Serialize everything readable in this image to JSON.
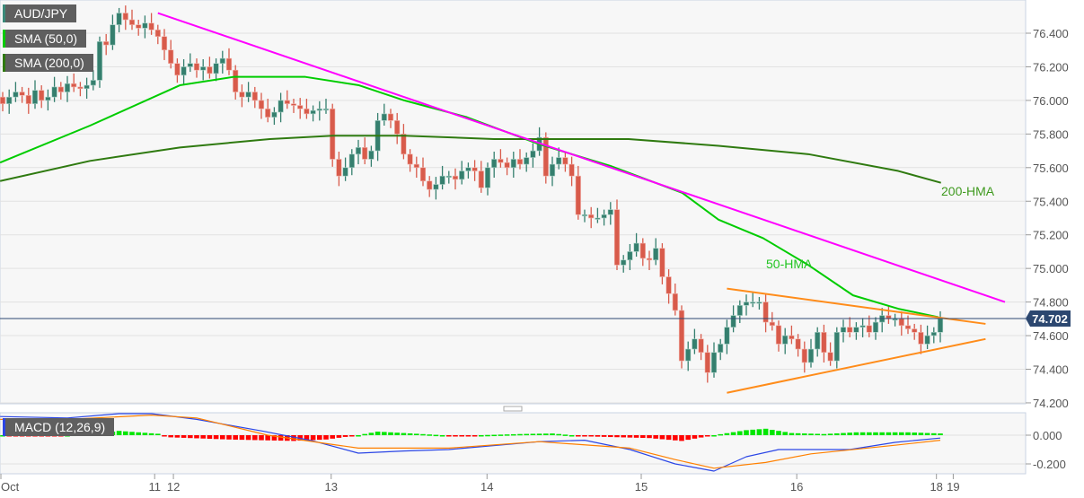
{
  "chart_data": {
    "type": "candlestick",
    "symbol": "AUD/JPY",
    "indicators": [
      "SMA (50,0)",
      "SMA (200,0)"
    ],
    "macd_label": "MACD (12,26,9)",
    "last_price": "74.702",
    "ylim": [
      74.2,
      76.55
    ],
    "y_ticks": [
      "76.400",
      "76.200",
      "76.000",
      "75.800",
      "75.600",
      "75.400",
      "75.200",
      "75.000",
      "74.800",
      "74.600",
      "74.400",
      "74.200"
    ],
    "macd_ylim": [
      -0.27,
      0.17
    ],
    "macd_ticks": [
      "0.000",
      "-0.200"
    ],
    "x_ticks": [
      {
        "label": "Oct",
        "bar": -0.4
      },
      {
        "label": "11",
        "bar": 23.5
      },
      {
        "label": "12",
        "bar": 26.4
      },
      {
        "label": "13",
        "bar": 50.8
      },
      {
        "label": "14",
        "bar": 74.9
      },
      {
        "label": "15",
        "bar": 98.75
      },
      {
        "label": "16",
        "bar": 122.8
      },
      {
        "label": "18",
        "bar": 144.4
      },
      {
        "label": "19",
        "bar": 147
      }
    ],
    "first_open": 76.02,
    "closes": [
      75.98,
      76.02,
      76.05,
      76.03,
      75.98,
      76.06,
      76.0,
      76.02,
      76.08,
      76.05,
      76.1,
      76.08,
      76.07,
      76.09,
      76.12,
      76.35,
      76.33,
      76.45,
      76.52,
      76.48,
      76.45,
      76.43,
      76.46,
      76.42,
      76.38,
      76.3,
      76.22,
      76.15,
      76.2,
      76.22,
      76.18,
      76.2,
      76.16,
      76.22,
      76.25,
      76.18,
      76.05,
      76.02,
      76.05,
      76.0,
      75.95,
      75.9,
      75.93,
      76.0,
      75.98,
      75.97,
      75.95,
      75.92,
      75.94,
      75.95,
      75.95,
      75.65,
      75.55,
      75.6,
      75.68,
      75.72,
      75.65,
      75.7,
      75.88,
      75.92,
      75.88,
      75.8,
      75.68,
      75.62,
      75.6,
      75.52,
      75.47,
      75.5,
      75.55,
      75.55,
      75.53,
      75.58,
      75.6,
      75.58,
      75.48,
      75.6,
      75.65,
      75.63,
      75.6,
      75.65,
      75.62,
      75.66,
      75.7,
      75.78,
      75.55,
      75.62,
      75.66,
      75.62,
      75.55,
      75.32,
      75.32,
      75.3,
      75.3,
      75.32,
      75.35,
      75.02,
      75.05,
      75.1,
      75.15,
      75.06,
      75.05,
      75.12,
      74.95,
      74.85,
      74.75,
      74.45,
      74.52,
      74.58,
      74.5,
      74.38,
      74.5,
      74.55,
      74.65,
      74.72,
      74.78,
      74.8,
      74.8,
      74.8,
      74.68,
      74.66,
      74.55,
      74.6,
      74.58,
      74.52,
      74.44,
      74.52,
      74.62,
      74.5,
      74.45,
      74.62,
      74.65,
      74.62,
      74.65,
      74.66,
      74.62,
      74.68,
      74.72,
      74.7,
      74.7,
      74.66,
      74.64,
      74.62,
      74.55,
      74.6,
      74.62,
      74.7
    ],
    "hma50": [
      [
        -0.4,
        75.63
      ],
      [
        13.5,
        75.85
      ],
      [
        27.4,
        76.09
      ],
      [
        35.7,
        76.14
      ],
      [
        46.8,
        76.14
      ],
      [
        55.1,
        76.09
      ],
      [
        62.1,
        76.0
      ],
      [
        71.8,
        75.9
      ],
      [
        82.9,
        75.74
      ],
      [
        94,
        75.61
      ],
      [
        105.1,
        75.45
      ],
      [
        110.7,
        75.29
      ],
      [
        117.6,
        75.18
      ],
      [
        124.6,
        75.02
      ],
      [
        131.5,
        74.84
      ],
      [
        138.5,
        74.76
      ],
      [
        144.7,
        74.71
      ]
    ],
    "hma200": [
      [
        -0.4,
        75.52
      ],
      [
        13.5,
        75.64
      ],
      [
        27.4,
        75.72
      ],
      [
        41.3,
        75.77
      ],
      [
        51,
        75.79
      ],
      [
        62.1,
        75.79
      ],
      [
        76,
        75.77
      ],
      [
        89.9,
        75.77
      ],
      [
        96.8,
        75.77
      ],
      [
        110.7,
        75.73
      ],
      [
        124.6,
        75.68
      ],
      [
        138.5,
        75.58
      ],
      [
        145.1,
        75.51
      ]
    ],
    "annotations": [
      {
        "text": "50-HMA",
        "color": "#22c422"
      },
      {
        "text": "200-HMA",
        "color": "#3f9a1f"
      }
    ],
    "trendlines": [
      {
        "color": "#ff00ff",
        "from": [
          24,
          76.52
        ],
        "to": [
          155,
          74.8
        ]
      },
      {
        "color": "#ff8c1a",
        "from": [
          112,
          74.88
        ],
        "to": [
          152,
          74.67
        ]
      },
      {
        "color": "#ff8c1a",
        "from": [
          112,
          74.26
        ],
        "to": [
          152,
          74.58
        ]
      }
    ],
    "macd": [
      [
        -0.4,
        0.13
      ],
      [
        10,
        0.12
      ],
      [
        18,
        0.15
      ],
      [
        23,
        0.15
      ],
      [
        30,
        0.11
      ],
      [
        40,
        0.03
      ],
      [
        48,
        -0.04
      ],
      [
        55,
        -0.125
      ],
      [
        62,
        -0.11
      ],
      [
        69,
        -0.1
      ],
      [
        83,
        -0.045
      ],
      [
        90,
        -0.035
      ],
      [
        97,
        -0.1
      ],
      [
        104,
        -0.2
      ],
      [
        110,
        -0.25
      ],
      [
        115,
        -0.15
      ],
      [
        120,
        -0.1
      ],
      [
        125,
        -0.1
      ],
      [
        131,
        -0.1
      ],
      [
        138,
        -0.05
      ],
      [
        145,
        -0.02
      ]
    ],
    "signal": [
      [
        -0.4,
        0.11
      ],
      [
        10,
        0.11
      ],
      [
        23,
        0.14
      ],
      [
        30,
        0.12
      ],
      [
        41,
        0.0
      ],
      [
        55,
        -0.09
      ],
      [
        69,
        -0.09
      ],
      [
        83,
        -0.045
      ],
      [
        97,
        -0.09
      ],
      [
        104,
        -0.17
      ],
      [
        110,
        -0.23
      ],
      [
        118,
        -0.19
      ],
      [
        125,
        -0.13
      ],
      [
        138,
        -0.07
      ],
      [
        145,
        -0.035
      ]
    ],
    "histogram": [
      [
        0,
        0.0
      ],
      [
        5,
        -0.008
      ],
      [
        10,
        0.0
      ],
      [
        15,
        0.015
      ],
      [
        18,
        0.03
      ],
      [
        24,
        0.01
      ],
      [
        26,
        -0.015
      ],
      [
        35,
        -0.03
      ],
      [
        45,
        -0.04
      ],
      [
        50,
        -0.03
      ],
      [
        55,
        0.0
      ],
      [
        58,
        0.025
      ],
      [
        62,
        0.015
      ],
      [
        66,
        0.005
      ],
      [
        70,
        -0.005
      ],
      [
        80,
        0.008
      ],
      [
        85,
        0.012
      ],
      [
        90,
        -0.008
      ],
      [
        100,
        -0.02
      ],
      [
        105,
        -0.04
      ],
      [
        110,
        0.0
      ],
      [
        115,
        0.035
      ],
      [
        118,
        0.045
      ],
      [
        122,
        0.015
      ],
      [
        127,
        0.008
      ],
      [
        132,
        0.02
      ],
      [
        140,
        0.02
      ],
      [
        145,
        0.012
      ]
    ],
    "colors": {
      "up": "#357f6e",
      "down": "#d85b4b",
      "macd": "#2b46e6",
      "signal": "#ff8000",
      "hist_up": "#00e600",
      "hist_down": "#ff0000",
      "price_box": "#2c4770",
      "sma50": "#00cc00",
      "sma200": "#2f7a10"
    }
  }
}
